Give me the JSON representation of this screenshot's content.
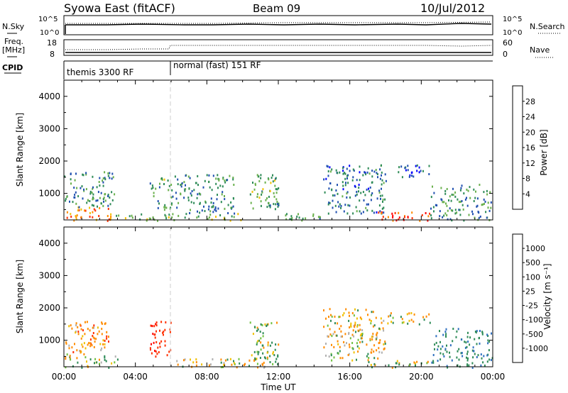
{
  "header": {
    "station": "Syowa East (fitACF)",
    "beam": "Beam 09",
    "date": "10/Jul/2012"
  },
  "summary": {
    "nsky_label": "N.Sky",
    "nsearch_label": "N.Search",
    "freq_label_1": "Freq.",
    "freq_label_2": "[MHz]",
    "nave_label": "Nave",
    "cpid_label": "CPID",
    "noise_left_ticks": [
      "10^5",
      "10^0"
    ],
    "noise_right_ticks": [
      "10^5",
      "10^0"
    ],
    "freq_ticks": [
      "18",
      "8"
    ],
    "nave_ticks": [
      "60",
      "0"
    ],
    "cpid_segments": [
      {
        "start_hour": 0,
        "end_hour": 6,
        "label": "themis 3300 RF"
      },
      {
        "start_hour": 6,
        "end_hour": 24,
        "label": "normal (fast) 151 RF"
      }
    ]
  },
  "colors": {
    "power_scale": [
      "#0000ff",
      "#2050b0",
      "#2e8b57",
      "#6ab04c",
      "#f0c000",
      "#ff8c00",
      "#ff3000",
      "#ff0000"
    ],
    "velocity_scale": [
      "#1030a0",
      "#3070c0",
      "#2e8b57",
      "#70c040",
      "#b0b0b0",
      "#f0c000",
      "#ff8c00",
      "#ff3000",
      "#ff0000"
    ]
  },
  "chart_data": [
    {
      "type": "heatmap",
      "name": "power",
      "xlabel": "",
      "ylabel": "Slant Range [km]",
      "xlim": [
        0,
        24
      ],
      "ylim": [
        180,
        4500
      ],
      "yticks": [
        "1000",
        "2000",
        "3000",
        "4000"
      ],
      "colorbar_label": "Power [dB]",
      "colorbar_ticks": [
        "28",
        "24",
        "20",
        "16",
        "12",
        "8",
        "4"
      ],
      "regions": [
        {
          "x": [
            0.0,
            2.8
          ],
          "y": [
            180,
            600
          ],
          "value": 22
        },
        {
          "x": [
            0.0,
            2.8
          ],
          "y": [
            600,
            1700
          ],
          "value": 10
        },
        {
          "x": [
            2.8,
            4.8
          ],
          "y": [
            180,
            400
          ],
          "value": 14
        },
        {
          "x": [
            4.8,
            6.0
          ],
          "y": [
            180,
            1500
          ],
          "value": 12
        },
        {
          "x": [
            6.0,
            10.0
          ],
          "y": [
            180,
            400
          ],
          "value": 14
        },
        {
          "x": [
            6.0,
            9.5
          ],
          "y": [
            400,
            1600
          ],
          "value": 9
        },
        {
          "x": [
            10.4,
            12.0
          ],
          "y": [
            500,
            1600
          ],
          "value": 12
        },
        {
          "x": [
            12.0,
            14.5
          ],
          "y": [
            180,
            400
          ],
          "value": 12
        },
        {
          "x": [
            14.5,
            18.0
          ],
          "y": [
            400,
            1900
          ],
          "value": 8
        },
        {
          "x": [
            17.5,
            20.5
          ],
          "y": [
            180,
            450
          ],
          "value": 28
        },
        {
          "x": [
            18.5,
            20.5
          ],
          "y": [
            1500,
            1900
          ],
          "value": 6
        },
        {
          "x": [
            20.5,
            24.0
          ],
          "y": [
            180,
            1300
          ],
          "value": 10
        }
      ]
    },
    {
      "type": "heatmap",
      "name": "velocity",
      "xlabel": "Time UT",
      "ylabel": "Slant Range [km]",
      "xlim": [
        0,
        24
      ],
      "ylim": [
        180,
        4500
      ],
      "yticks": [
        "1000",
        "2000",
        "3000",
        "4000"
      ],
      "xticks": [
        "00:00",
        "04:00",
        "08:00",
        "12:00",
        "16:00",
        "20:00",
        "00:00"
      ],
      "colorbar_label": "Velocity [m s⁻¹]",
      "colorbar_ticks": [
        "1000",
        "500",
        "100",
        "25",
        "-25",
        "-100",
        "-500",
        "-1000"
      ],
      "regions": [
        {
          "x": [
            0.0,
            2.5
          ],
          "y": [
            600,
            1600
          ],
          "value": -300
        },
        {
          "x": [
            0.0,
            3.0
          ],
          "y": [
            180,
            600
          ],
          "value": 80
        },
        {
          "x": [
            4.8,
            6.0
          ],
          "y": [
            500,
            1600
          ],
          "value": -800
        },
        {
          "x": [
            6.0,
            12.0
          ],
          "y": [
            180,
            450
          ],
          "value": -60
        },
        {
          "x": [
            10.4,
            12.0
          ],
          "y": [
            450,
            1600
          ],
          "value": 150
        },
        {
          "x": [
            14.5,
            18.0
          ],
          "y": [
            400,
            2000
          ],
          "value": -100
        },
        {
          "x": [
            17.0,
            20.5
          ],
          "y": [
            180,
            400
          ],
          "value": 60
        },
        {
          "x": [
            18.0,
            20.5
          ],
          "y": [
            1500,
            1900
          ],
          "value": 0
        },
        {
          "x": [
            20.5,
            24.0
          ],
          "y": [
            180,
            1400
          ],
          "value": 400
        }
      ]
    }
  ]
}
